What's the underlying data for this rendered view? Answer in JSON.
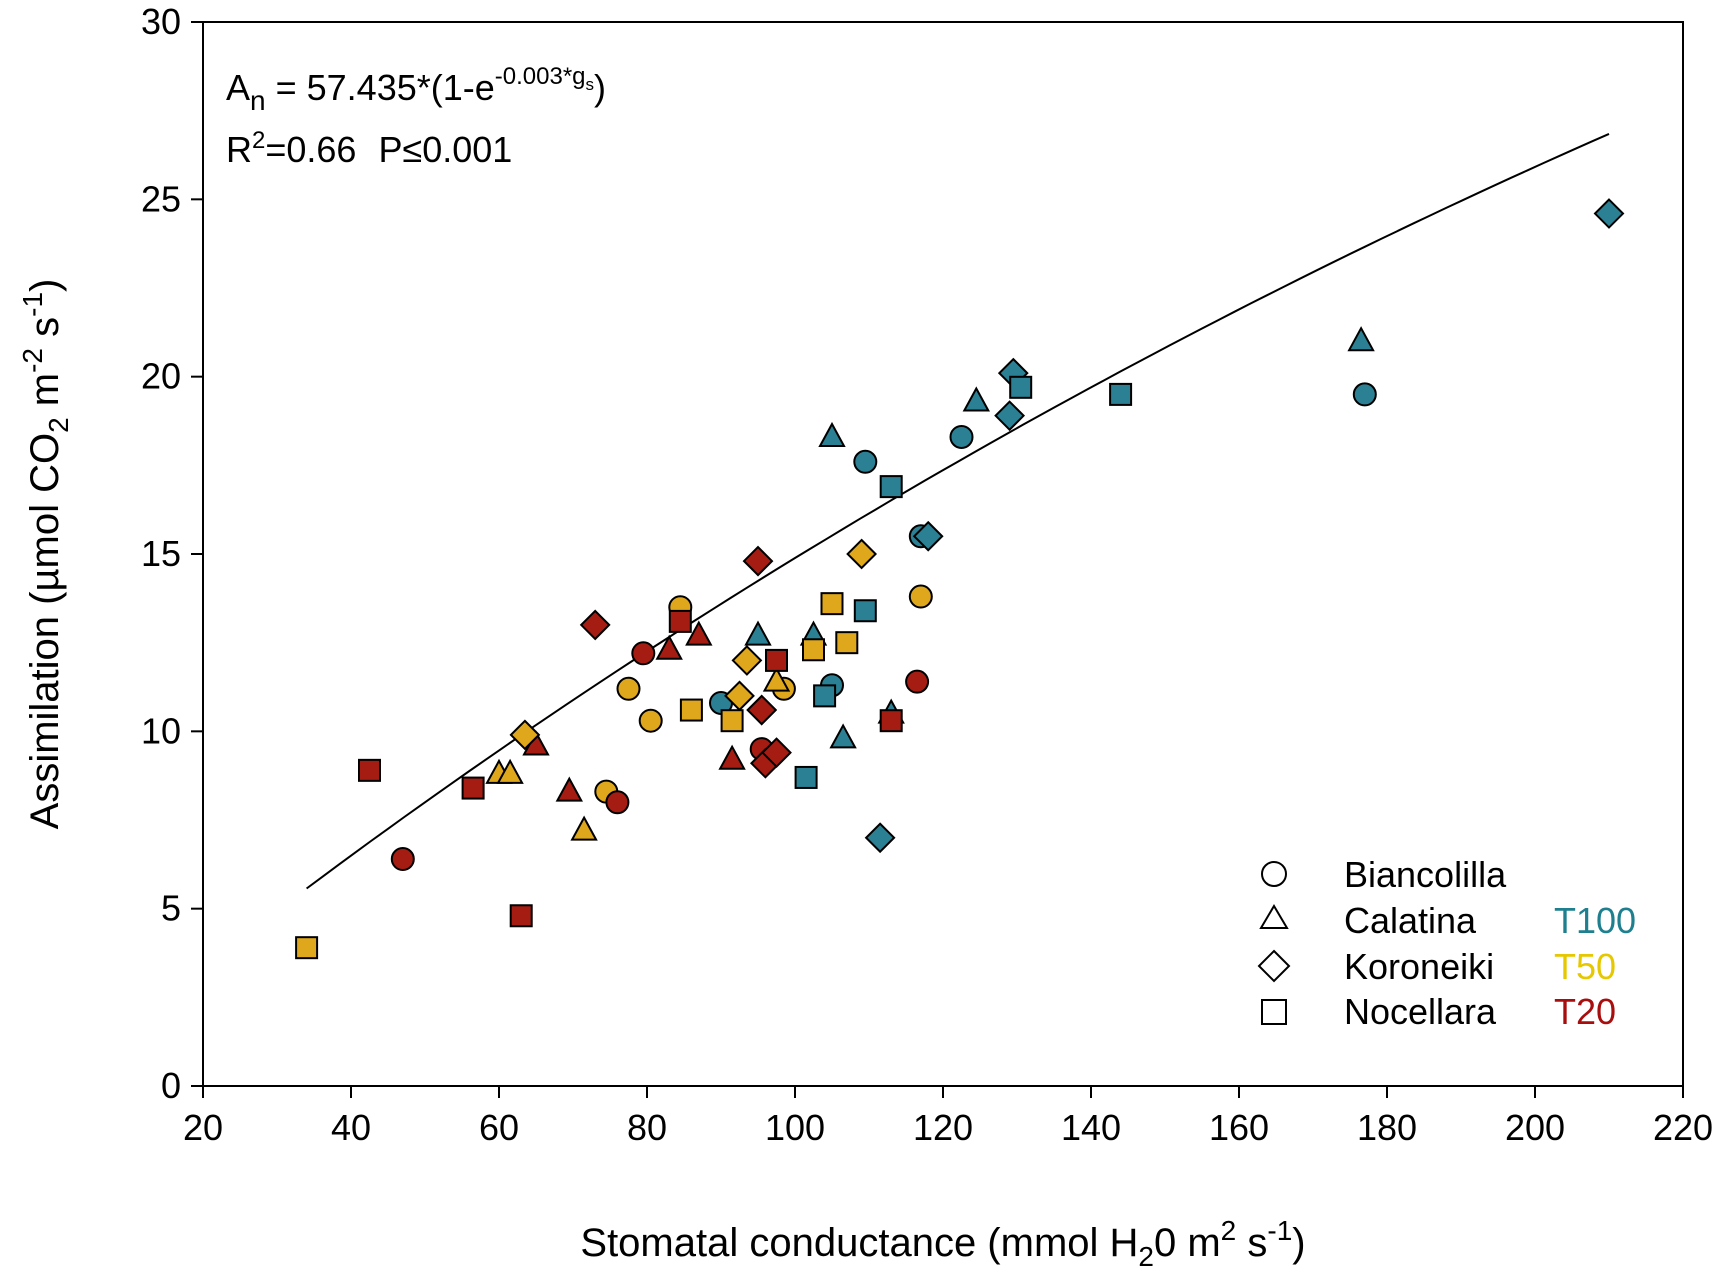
{
  "chart_data": {
    "type": "scatter",
    "xlabel": {
      "main": "Stomatal conductance (mmol H",
      "sub": "2",
      "mid": "0 m",
      "sup1": "2",
      "mid2": " s",
      "sup2": "-1",
      "end": ")"
    },
    "ylabel": {
      "main": "Assimilation (µmol CO",
      "sub": "2",
      "mid": " m",
      "sup1": "-2",
      "mid2": " s",
      "sup2": "-1",
      "end": ")"
    },
    "xlim": [
      20,
      220
    ],
    "ylim": [
      0,
      30
    ],
    "xticks": [
      20,
      40,
      60,
      80,
      100,
      120,
      140,
      160,
      180,
      200,
      220
    ],
    "yticks": [
      0,
      5,
      10,
      15,
      20,
      25,
      30
    ],
    "equation": {
      "lhs": "A",
      "lhs_sub": "n",
      "rhs": " = 57.435*(1-e",
      "exp": "-0.003*g",
      "exp_sub": "s",
      "end": ")"
    },
    "stats": {
      "r_base": "R",
      "r_sup": "2",
      "r_val": "=0.66",
      "p": "P≤0.001"
    },
    "fit": {
      "a": 57.435,
      "b": 0.003,
      "x_range": [
        34,
        210
      ]
    },
    "legend": {
      "position": "bottom-right",
      "shapes": [
        {
          "label": "Biancolilla",
          "marker": "circle"
        },
        {
          "label": "Calatina",
          "marker": "triangle"
        },
        {
          "label": "Koroneiki",
          "marker": "diamond"
        },
        {
          "label": "Nocellara",
          "marker": "square"
        }
      ],
      "treatments": [
        {
          "label": "T100",
          "color": "#1e7f8e"
        },
        {
          "label": "T50",
          "color": "#e6c800"
        },
        {
          "label": "T20",
          "color": "#a80e0e"
        }
      ]
    },
    "colors": {
      "T100": "#2b8093",
      "T50": "#dfa71b",
      "T20": "#a51c13"
    },
    "series": [
      {
        "name": "Biancolilla T100",
        "marker": "circle",
        "treatment": "T100",
        "points": [
          [
            90,
            10.8
          ],
          [
            105,
            11.3
          ],
          [
            109.5,
            17.6
          ],
          [
            117,
            15.5
          ],
          [
            122.5,
            18.3
          ],
          [
            177,
            19.5
          ]
        ]
      },
      {
        "name": "Biancolilla T50",
        "marker": "circle",
        "treatment": "T50",
        "points": [
          [
            74.5,
            8.3
          ],
          [
            77.5,
            11.2
          ],
          [
            80.5,
            10.3
          ],
          [
            84.5,
            13.5
          ],
          [
            98.5,
            11.2
          ],
          [
            117,
            13.8
          ]
        ]
      },
      {
        "name": "Biancolilla T20",
        "marker": "circle",
        "treatment": "T20",
        "points": [
          [
            47,
            6.4
          ],
          [
            76,
            8
          ],
          [
            79.5,
            12.2
          ],
          [
            95.5,
            9.5
          ],
          [
            116.5,
            11.4
          ]
        ]
      },
      {
        "name": "Calatina T100",
        "marker": "triangle",
        "treatment": "T100",
        "points": [
          [
            95,
            12.7
          ],
          [
            102.5,
            12.7
          ],
          [
            105,
            18.3
          ],
          [
            106.5,
            9.8
          ],
          [
            113,
            10.5
          ],
          [
            124.5,
            19.3
          ],
          [
            176.5,
            21
          ]
        ]
      },
      {
        "name": "Calatina T50",
        "marker": "triangle",
        "treatment": "T50",
        "points": [
          [
            60,
            8.8
          ],
          [
            61.5,
            8.8
          ],
          [
            71.5,
            7.2
          ],
          [
            97.5,
            11.4
          ]
        ]
      },
      {
        "name": "Calatina T20",
        "marker": "triangle",
        "treatment": "T20",
        "points": [
          [
            65,
            9.6
          ],
          [
            69.5,
            8.3
          ],
          [
            83,
            12.3
          ],
          [
            87,
            12.7
          ],
          [
            91.5,
            9.2
          ]
        ]
      },
      {
        "name": "Koroneiki T100",
        "marker": "diamond",
        "treatment": "T100",
        "points": [
          [
            95.5,
            10.6
          ],
          [
            111.5,
            7
          ],
          [
            118,
            15.5
          ],
          [
            129,
            18.9
          ],
          [
            129.5,
            20.1
          ],
          [
            210,
            24.6
          ]
        ]
      },
      {
        "name": "Koroneiki T50",
        "marker": "diamond",
        "treatment": "T50",
        "points": [
          [
            63.5,
            9.9
          ],
          [
            92.5,
            11
          ],
          [
            93.5,
            12
          ],
          [
            109,
            15
          ]
        ]
      },
      {
        "name": "Koroneiki T20",
        "marker": "diamond",
        "treatment": "T20",
        "points": [
          [
            73,
            13
          ],
          [
            95,
            14.8
          ],
          [
            95.5,
            10.6
          ],
          [
            96,
            9.1
          ],
          [
            97.5,
            9.4
          ]
        ]
      },
      {
        "name": "Nocellara T100",
        "marker": "square",
        "treatment": "T100",
        "points": [
          [
            101.5,
            8.7
          ],
          [
            104,
            11
          ],
          [
            109.5,
            13.4
          ],
          [
            113,
            16.9
          ],
          [
            130.5,
            19.7
          ],
          [
            144,
            19.5
          ]
        ]
      },
      {
        "name": "Nocellara T50",
        "marker": "square",
        "treatment": "T50",
        "points": [
          [
            34,
            3.9
          ],
          [
            86,
            10.6
          ],
          [
            91.5,
            10.3
          ],
          [
            102.5,
            12.3
          ],
          [
            105,
            13.6
          ],
          [
            107,
            12.5
          ]
        ]
      },
      {
        "name": "Nocellara T20",
        "marker": "square",
        "treatment": "T20",
        "points": [
          [
            42.5,
            8.9
          ],
          [
            56.5,
            8.4
          ],
          [
            63,
            4.8
          ],
          [
            84.5,
            13.1
          ],
          [
            97.5,
            12
          ],
          [
            113,
            10.3
          ]
        ]
      }
    ]
  }
}
